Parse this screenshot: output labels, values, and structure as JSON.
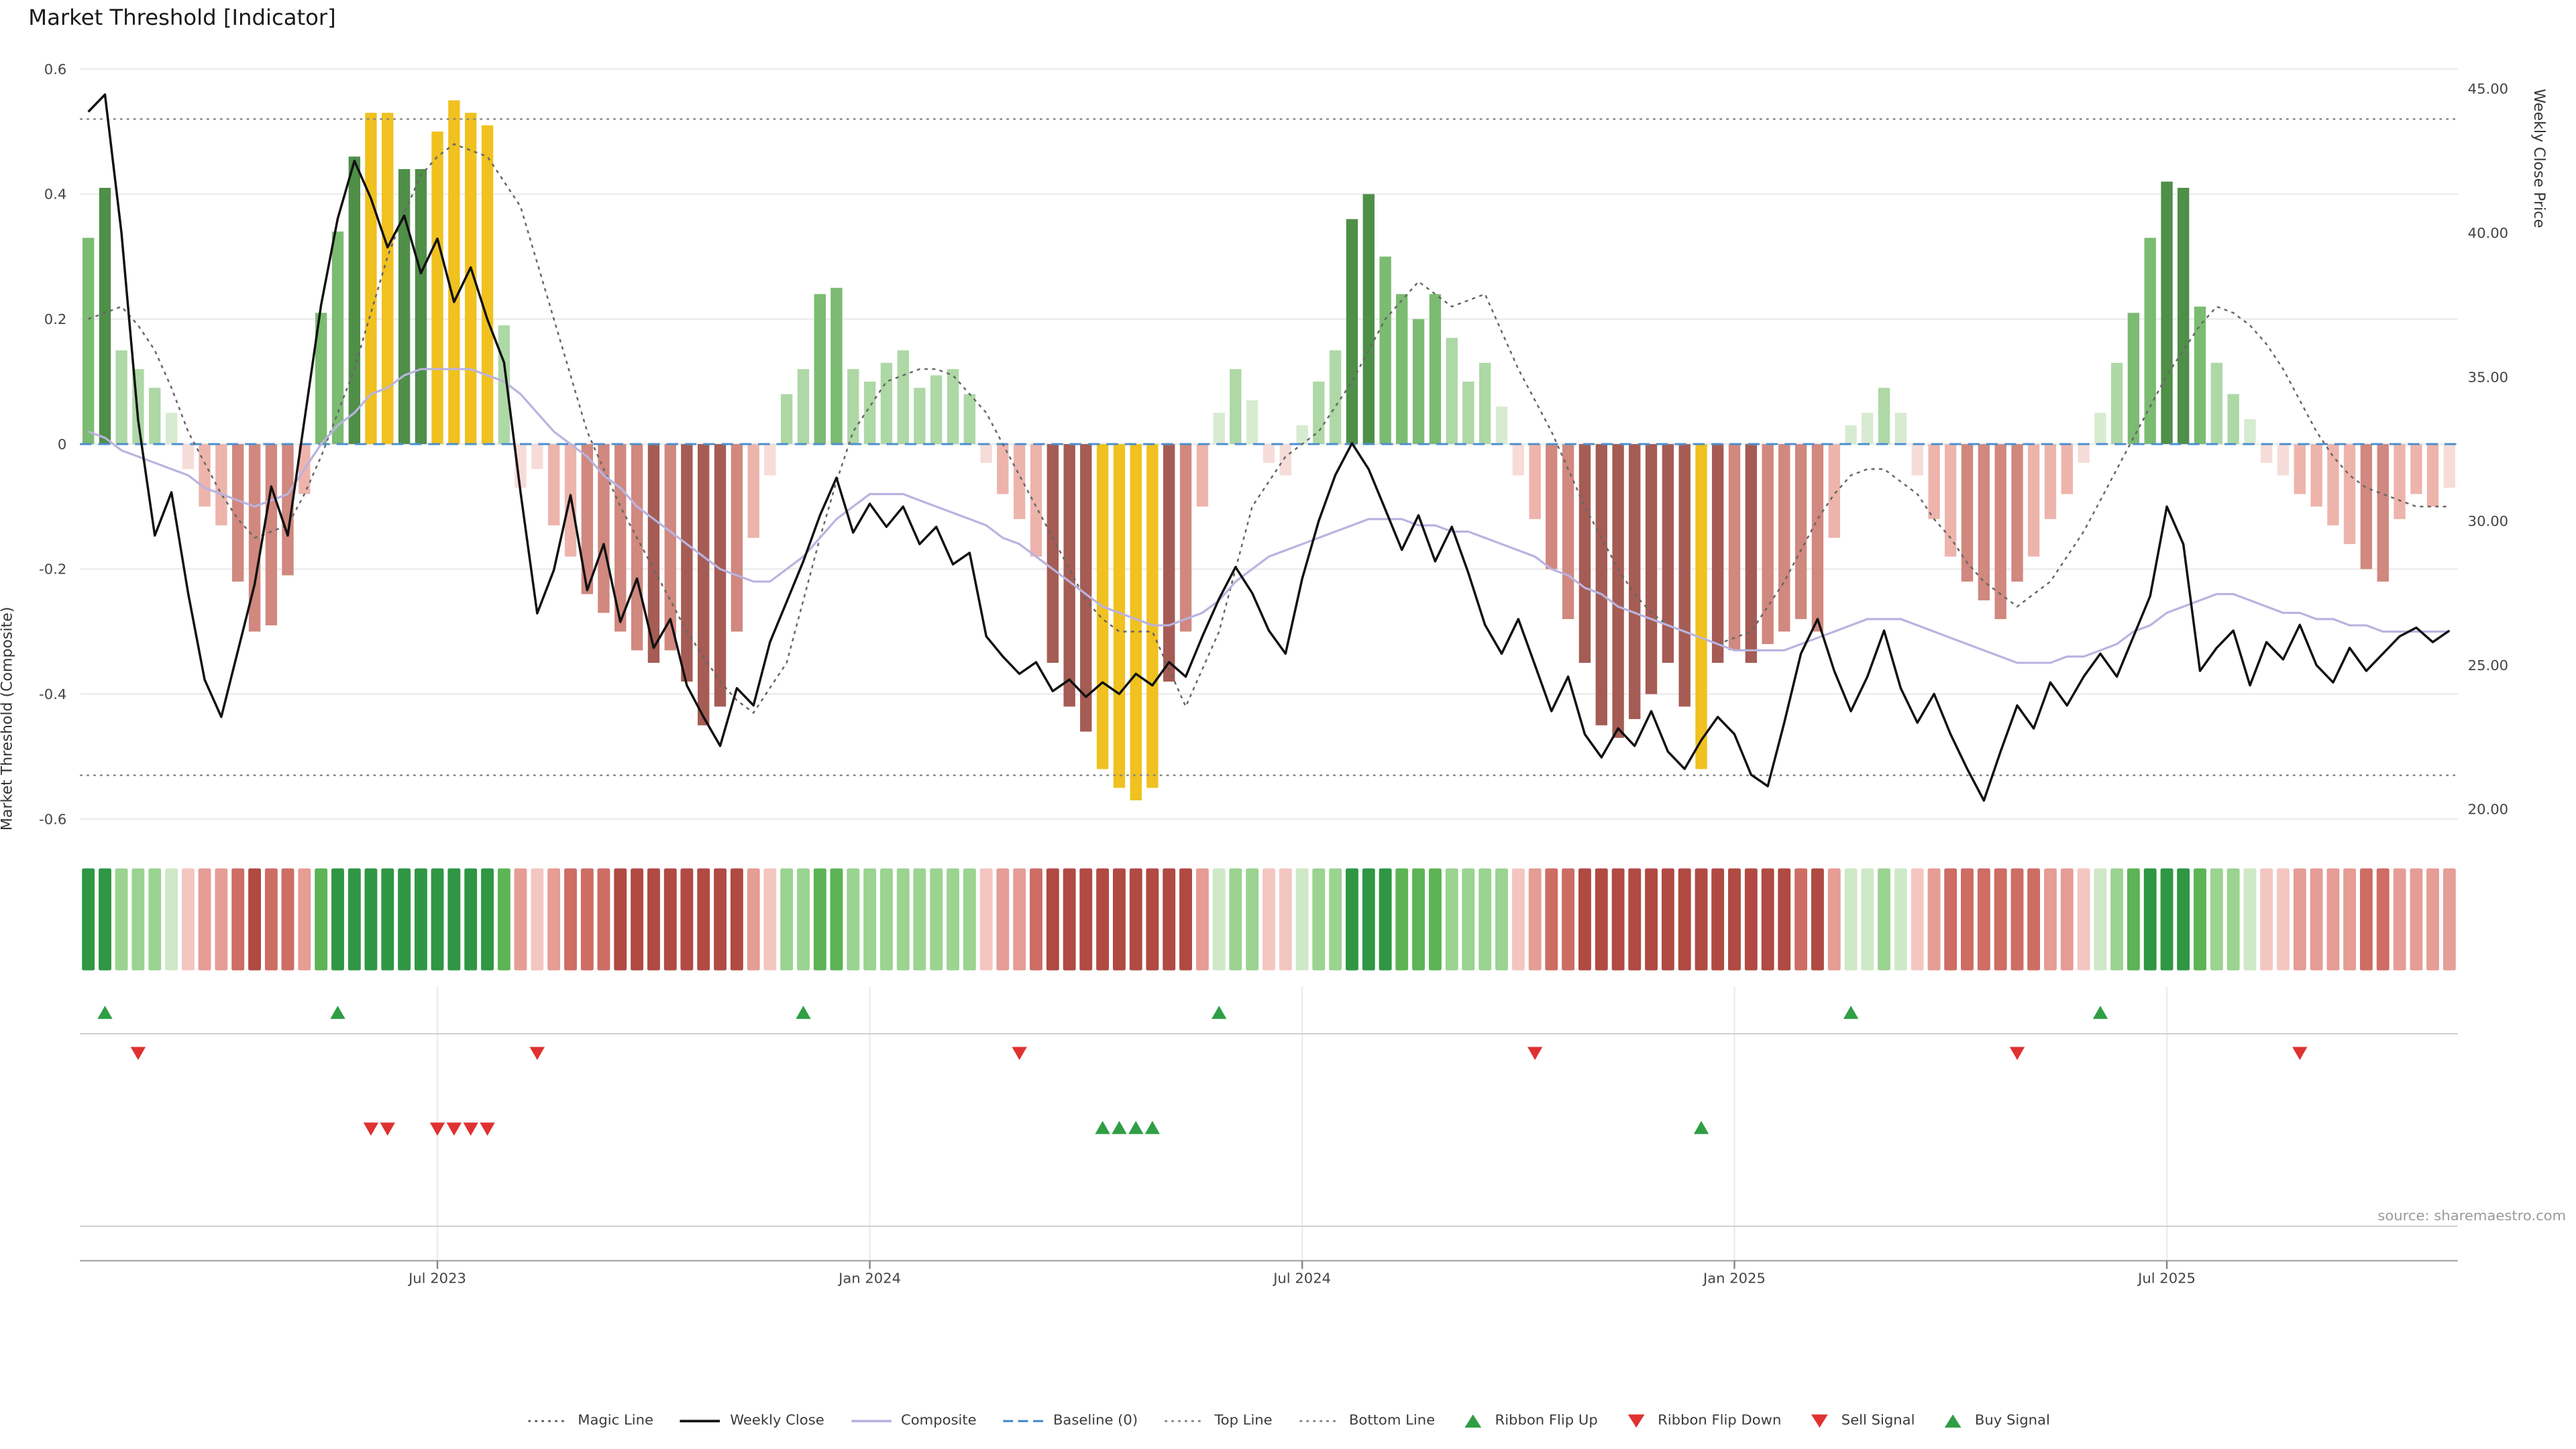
{
  "title": "Market Threshold [Indicator]",
  "source": "source: sharemaestro.com",
  "axes": {
    "left_label": "Market Threshold (Composite)",
    "right_label": "Weekly Close Price",
    "left_ticks": [
      0.6,
      0.4,
      0.2,
      0,
      -0.2,
      -0.4,
      -0.6
    ],
    "left_tick_labels": [
      "0.6",
      "0.4",
      "0.2",
      "0",
      "-0.2",
      "-0.4",
      "-0.6"
    ],
    "right_tick_values": [
      45,
      40,
      35,
      30,
      25,
      20
    ],
    "right_tick_labels": [
      "45.00",
      "40.00",
      "35.00",
      "30.00",
      "25.00",
      "20.00"
    ],
    "x_ticks": [
      {
        "label": "Jul 2023",
        "index": 21
      },
      {
        "label": "Jan 2024",
        "index": 47
      },
      {
        "label": "Jul 2024",
        "index": 73
      },
      {
        "label": "Jan 2025",
        "index": 99
      },
      {
        "label": "Jul 2025",
        "index": 125
      }
    ]
  },
  "chart_data": {
    "type": "bar+line",
    "n_weeks": 143,
    "left_axis_range": [
      -0.6,
      0.6
    ],
    "right_axis_range": [
      20,
      45
    ],
    "baseline": 0,
    "top_line": 0.52,
    "bottom_line": -0.53,
    "bars": [
      0.33,
      0.41,
      0.15,
      0.12,
      0.09,
      0.05,
      -0.04,
      -0.1,
      -0.13,
      -0.22,
      -0.3,
      -0.29,
      -0.21,
      -0.08,
      0.21,
      0.34,
      0.46,
      0.53,
      0.53,
      0.44,
      0.44,
      0.5,
      0.55,
      0.53,
      0.51,
      0.19,
      -0.07,
      -0.04,
      -0.13,
      -0.18,
      -0.24,
      -0.27,
      -0.3,
      -0.33,
      -0.35,
      -0.33,
      -0.38,
      -0.45,
      -0.42,
      -0.3,
      -0.15,
      -0.05,
      0.08,
      0.12,
      0.24,
      0.25,
      0.12,
      0.1,
      0.13,
      0.15,
      0.09,
      0.11,
      0.12,
      0.08,
      -0.03,
      -0.08,
      -0.12,
      -0.18,
      -0.35,
      -0.42,
      -0.46,
      -0.52,
      -0.55,
      -0.57,
      -0.55,
      -0.38,
      -0.3,
      -0.1,
      0.05,
      0.12,
      0.07,
      -0.03,
      -0.05,
      0.03,
      0.1,
      0.15,
      0.36,
      0.4,
      0.3,
      0.24,
      0.2,
      0.24,
      0.17,
      0.1,
      0.13,
      0.06,
      -0.05,
      -0.12,
      -0.2,
      -0.28,
      -0.35,
      -0.45,
      -0.47,
      -0.44,
      -0.4,
      -0.35,
      -0.42,
      -0.52,
      -0.35,
      -0.33,
      -0.35,
      -0.32,
      -0.3,
      -0.28,
      -0.3,
      -0.15,
      0.03,
      0.05,
      0.09,
      0.05,
      -0.05,
      -0.12,
      -0.18,
      -0.22,
      -0.25,
      -0.28,
      -0.22,
      -0.18,
      -0.12,
      -0.08,
      -0.03,
      0.05,
      0.13,
      0.21,
      0.33,
      0.42,
      0.41,
      0.22,
      0.13,
      0.08,
      0.04,
      -0.03,
      -0.05,
      -0.08,
      -0.1,
      -0.13,
      -0.16,
      -0.2,
      -0.22,
      -0.12,
      -0.08,
      -0.1,
      -0.07
    ],
    "gold_indices": [
      17,
      18,
      21,
      22,
      23,
      24,
      61,
      62,
      63,
      64,
      97
    ],
    "weekly_close": [
      44.2,
      44.8,
      40,
      33.5,
      29.5,
      31,
      27.5,
      24.5,
      23.2,
      25.5,
      27.8,
      31.2,
      29.5,
      33.5,
      37.5,
      40.5,
      42.5,
      41.2,
      39.5,
      40.6,
      38.6,
      39.8,
      37.6,
      38.8,
      37,
      35.5,
      31,
      26.8,
      28.3,
      30.9,
      27.6,
      29.2,
      26.5,
      28,
      25.6,
      26.6,
      24.3,
      23.2,
      22.2,
      24.2,
      23.6,
      25.8,
      27.2,
      28.6,
      30.2,
      31.5,
      29.6,
      30.6,
      29.8,
      30.5,
      29.2,
      29.8,
      28.5,
      28.9,
      26,
      25.3,
      24.7,
      25.1,
      24.1,
      24.5,
      23.9,
      24.4,
      24,
      24.7,
      24.3,
      25.1,
      24.6,
      26,
      27.3,
      28.4,
      27.5,
      26.2,
      25.4,
      28,
      30,
      31.6,
      32.7,
      31.8,
      30.4,
      29,
      30.2,
      28.6,
      29.8,
      28.2,
      26.4,
      25.4,
      26.6,
      25,
      23.4,
      24.6,
      22.6,
      21.8,
      22.8,
      22.2,
      23.4,
      22,
      21.4,
      22.4,
      23.2,
      22.6,
      21.2,
      20.8,
      23,
      25.4,
      26.6,
      24.8,
      23.4,
      24.6,
      26.2,
      24.2,
      23,
      24,
      22.6,
      21.4,
      20.3,
      22,
      23.6,
      22.8,
      24.4,
      23.6,
      24.6,
      25.4,
      24.6,
      26,
      27.4,
      30.5,
      29.2,
      24.8,
      25.6,
      26.2,
      24.3,
      25.8,
      25.2,
      26.4,
      25,
      24.4,
      25.6,
      24.8,
      25.4,
      26,
      26.3,
      25.8,
      26.2
    ],
    "magic_line": [
      0.2,
      0.21,
      0.22,
      0.19,
      0.15,
      0.09,
      0.02,
      -0.03,
      -0.08,
      -0.12,
      -0.15,
      -0.14,
      -0.13,
      -0.08,
      -0.02,
      0.05,
      0.12,
      0.21,
      0.3,
      0.37,
      0.43,
      0.46,
      0.48,
      0.47,
      0.46,
      0.42,
      0.38,
      0.29,
      0.2,
      0.11,
      0.02,
      -0.04,
      -0.1,
      -0.15,
      -0.2,
      -0.25,
      -0.3,
      -0.34,
      -0.38,
      -0.41,
      -0.43,
      -0.39,
      -0.35,
      -0.25,
      -0.15,
      -0.06,
      0.02,
      0.06,
      0.1,
      0.11,
      0.12,
      0.12,
      0.11,
      0.08,
      0.05,
      0,
      -0.05,
      -0.1,
      -0.15,
      -0.2,
      -0.25,
      -0.28,
      -0.3,
      -0.3,
      -0.3,
      -0.36,
      -0.42,
      -0.36,
      -0.3,
      -0.2,
      -0.1,
      -0.06,
      -0.02,
      0,
      0.02,
      0.06,
      0.1,
      0.15,
      0.2,
      0.23,
      0.26,
      0.24,
      0.22,
      0.23,
      0.24,
      0.18,
      0.12,
      0.07,
      0.02,
      -0.04,
      -0.1,
      -0.15,
      -0.2,
      -0.24,
      -0.27,
      -0.29,
      -0.3,
      -0.31,
      -0.32,
      -0.31,
      -0.3,
      -0.26,
      -0.22,
      -0.17,
      -0.12,
      -0.08,
      -0.05,
      -0.04,
      -0.04,
      -0.06,
      -0.08,
      -0.12,
      -0.15,
      -0.19,
      -0.22,
      -0.24,
      -0.26,
      -0.24,
      -0.22,
      -0.18,
      -0.14,
      -0.09,
      -0.04,
      0.01,
      0.06,
      0.11,
      0.15,
      0.19,
      0.22,
      0.21,
      0.19,
      0.16,
      0.12,
      0.07,
      0.02,
      -0.02,
      -0.05,
      -0.07,
      -0.08,
      -0.09,
      -0.1,
      -0.1,
      -0.1
    ],
    "composite_line": [
      0.02,
      0.01,
      -0.01,
      -0.02,
      -0.03,
      -0.04,
      -0.05,
      -0.07,
      -0.08,
      -0.09,
      -0.1,
      -0.09,
      -0.08,
      -0.04,
      0,
      0.03,
      0.05,
      0.08,
      0.09,
      0.11,
      0.12,
      0.12,
      0.12,
      0.12,
      0.11,
      0.1,
      0.08,
      0.05,
      0.02,
      0,
      -0.02,
      -0.05,
      -0.07,
      -0.1,
      -0.12,
      -0.14,
      -0.16,
      -0.18,
      -0.2,
      -0.21,
      -0.22,
      -0.22,
      -0.2,
      -0.18,
      -0.15,
      -0.12,
      -0.1,
      -0.08,
      -0.08,
      -0.08,
      -0.09,
      -0.1,
      -0.11,
      -0.12,
      -0.13,
      -0.15,
      -0.16,
      -0.18,
      -0.2,
      -0.22,
      -0.24,
      -0.26,
      -0.27,
      -0.28,
      -0.29,
      -0.29,
      -0.28,
      -0.27,
      -0.25,
      -0.22,
      -0.2,
      -0.18,
      -0.17,
      -0.16,
      -0.15,
      -0.14,
      -0.13,
      -0.12,
      -0.12,
      -0.12,
      -0.13,
      -0.13,
      -0.14,
      -0.14,
      -0.15,
      -0.16,
      -0.17,
      -0.18,
      -0.2,
      -0.21,
      -0.23,
      -0.24,
      -0.26,
      -0.27,
      -0.28,
      -0.29,
      -0.3,
      -0.31,
      -0.32,
      -0.33,
      -0.33,
      -0.33,
      -0.33,
      -0.32,
      -0.31,
      -0.3,
      -0.29,
      -0.28,
      -0.28,
      -0.28,
      -0.29,
      -0.3,
      -0.31,
      -0.32,
      -0.33,
      -0.34,
      -0.35,
      -0.35,
      -0.35,
      -0.34,
      -0.34,
      -0.33,
      -0.32,
      -0.3,
      -0.29,
      -0.27,
      -0.26,
      -0.25,
      -0.24,
      -0.24,
      -0.25,
      -0.26,
      -0.27,
      -0.27,
      -0.28,
      -0.28,
      -0.29,
      -0.29,
      -0.3,
      -0.3,
      -0.3,
      -0.3,
      -0.3
    ],
    "ribbon_source": "bars",
    "signals": {
      "ribbon_flip_up_indices": [
        1,
        15,
        43,
        68,
        106,
        121
      ],
      "ribbon_flip_down_indices": [
        3,
        27,
        56,
        87,
        116,
        133
      ],
      "sell_indices": [
        17,
        18,
        21,
        22,
        23,
        24
      ],
      "buy_indices": [
        61,
        62,
        63,
        64,
        97
      ]
    }
  },
  "legend": [
    {
      "label": "Magic Line",
      "marker": "line-dotted",
      "color": "#666666"
    },
    {
      "label": "Weekly Close",
      "marker": "line-solid",
      "color": "#111111"
    },
    {
      "label": "Composite",
      "marker": "line-solid",
      "color": "#b9b3e0"
    },
    {
      "label": "Baseline (0)",
      "marker": "line-dashed",
      "color": "#4d8fcc"
    },
    {
      "label": "Top Line",
      "marker": "line-dotted",
      "color": "#888888"
    },
    {
      "label": "Bottom Line",
      "marker": "line-dotted",
      "color": "#888888"
    },
    {
      "label": "Ribbon Flip Up",
      "marker": "triangle-up",
      "color": "#2f9e44"
    },
    {
      "label": "Ribbon Flip Down",
      "marker": "triangle-down",
      "color": "#e03131"
    },
    {
      "label": "Sell Signal",
      "marker": "triangle-down",
      "color": "#e03131"
    },
    {
      "label": "Buy Signal",
      "marker": "triangle-up",
      "color": "#2f9e44"
    }
  ],
  "colors": {
    "gold": "#f0c11f",
    "green_shades": [
      "#d7ebd1",
      "#aed8a6",
      "#7cbb72",
      "#4f8f48"
    ],
    "red_shades": [
      "#f6dcd8",
      "#edb4ac",
      "#d0887f",
      "#a55c54"
    ],
    "ribbon_green_shades": [
      "#cfe8c7",
      "#9bd391",
      "#5cb455",
      "#2f9644"
    ],
    "ribbon_red_shades": [
      "#f4c6c0",
      "#e59d95",
      "#cd6d63",
      "#b04a42"
    ],
    "weekly_close": "#111111",
    "magic_line": "#666666",
    "composite_line": "#b9b3e0",
    "baseline": "#4d8fcc",
    "top_bottom_line": "#888888",
    "grid": "#ececec",
    "signal_green": "#2f9e44",
    "signal_red": "#e03131",
    "axis_text": "#444444",
    "separator": "#cccccc"
  }
}
